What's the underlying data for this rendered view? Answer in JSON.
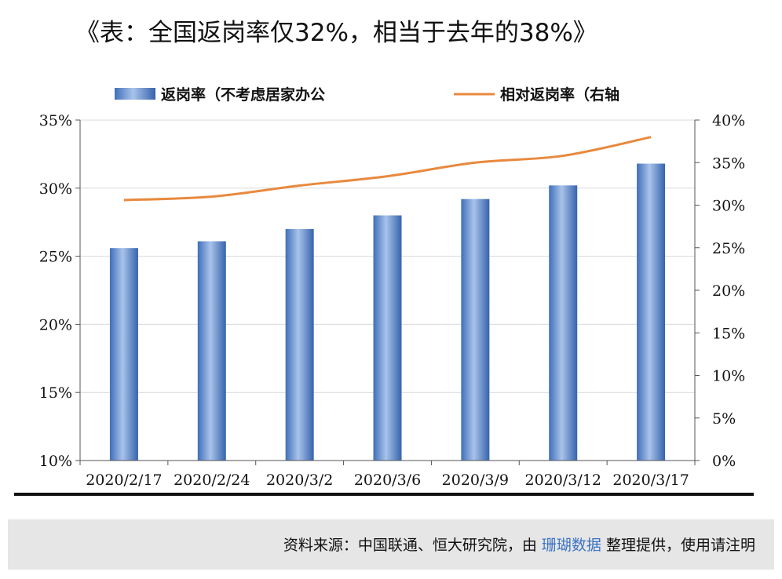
{
  "title": "《表：全国返岗率仅32%，相当于去年的38%》",
  "footer": {
    "prefix": "资料来源：中国联通、恒大研究院，由",
    "brand": "珊瑚数据",
    "suffix": "整理提供，使用请注明",
    "brand_color": "#3b73c5"
  },
  "chart_data": {
    "type": "bar",
    "categories": [
      "2020/2/17",
      "2020/2/24",
      "2020/3/2",
      "2020/3/6",
      "2020/3/9",
      "2020/3/12",
      "2020/3/17"
    ],
    "series": [
      {
        "name": "返岗率（不考虑居家办公",
        "type": "bar",
        "axis": "left",
        "values": [
          25.6,
          26.1,
          27.0,
          28.0,
          29.2,
          30.2,
          31.8
        ],
        "color": "#5b86c8"
      },
      {
        "name": "相对返岗率（右轴",
        "type": "line",
        "axis": "right",
        "values": [
          30.6,
          31.0,
          32.3,
          33.4,
          35.0,
          35.8,
          38.0
        ],
        "color": "#e8893e"
      }
    ],
    "yleft": {
      "min": 10,
      "max": 35,
      "ticks": [
        "10%",
        "15%",
        "20%",
        "25%",
        "30%",
        "35%"
      ]
    },
    "yright": {
      "min": 0,
      "max": 40,
      "ticks": [
        "0%",
        "5%",
        "10%",
        "15%",
        "20%",
        "25%",
        "30%",
        "35%",
        "40%"
      ]
    },
    "grid": true,
    "legend": "top"
  }
}
